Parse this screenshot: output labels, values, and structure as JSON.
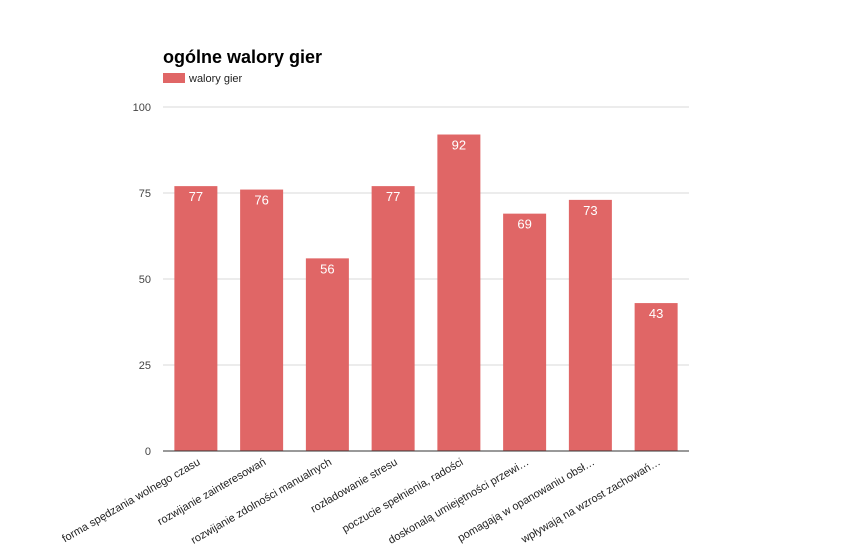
{
  "chart_data": {
    "type": "bar",
    "title": "ogólne walory gier",
    "xlabel": "",
    "ylabel": "",
    "ylim": [
      0,
      100
    ],
    "yticks": [
      0,
      25,
      50,
      75,
      100
    ],
    "grid": true,
    "legend_position": "top-left",
    "categories": [
      "forma spędzania wolnego czasu",
      "rozwijanie zainteresowań",
      "rozwijanie zdolności manualnych",
      "rozładowanie stresu",
      "poczucie spełnienia, radości",
      "doskonalą umiejętności przewi…",
      "pomagają w opanowaniu obsł…",
      "wpływają na wzrost zachowań…"
    ],
    "series": [
      {
        "name": "walory gier",
        "color": "#e06666",
        "values": [
          77,
          76,
          56,
          77,
          92,
          69,
          73,
          43
        ]
      }
    ]
  }
}
